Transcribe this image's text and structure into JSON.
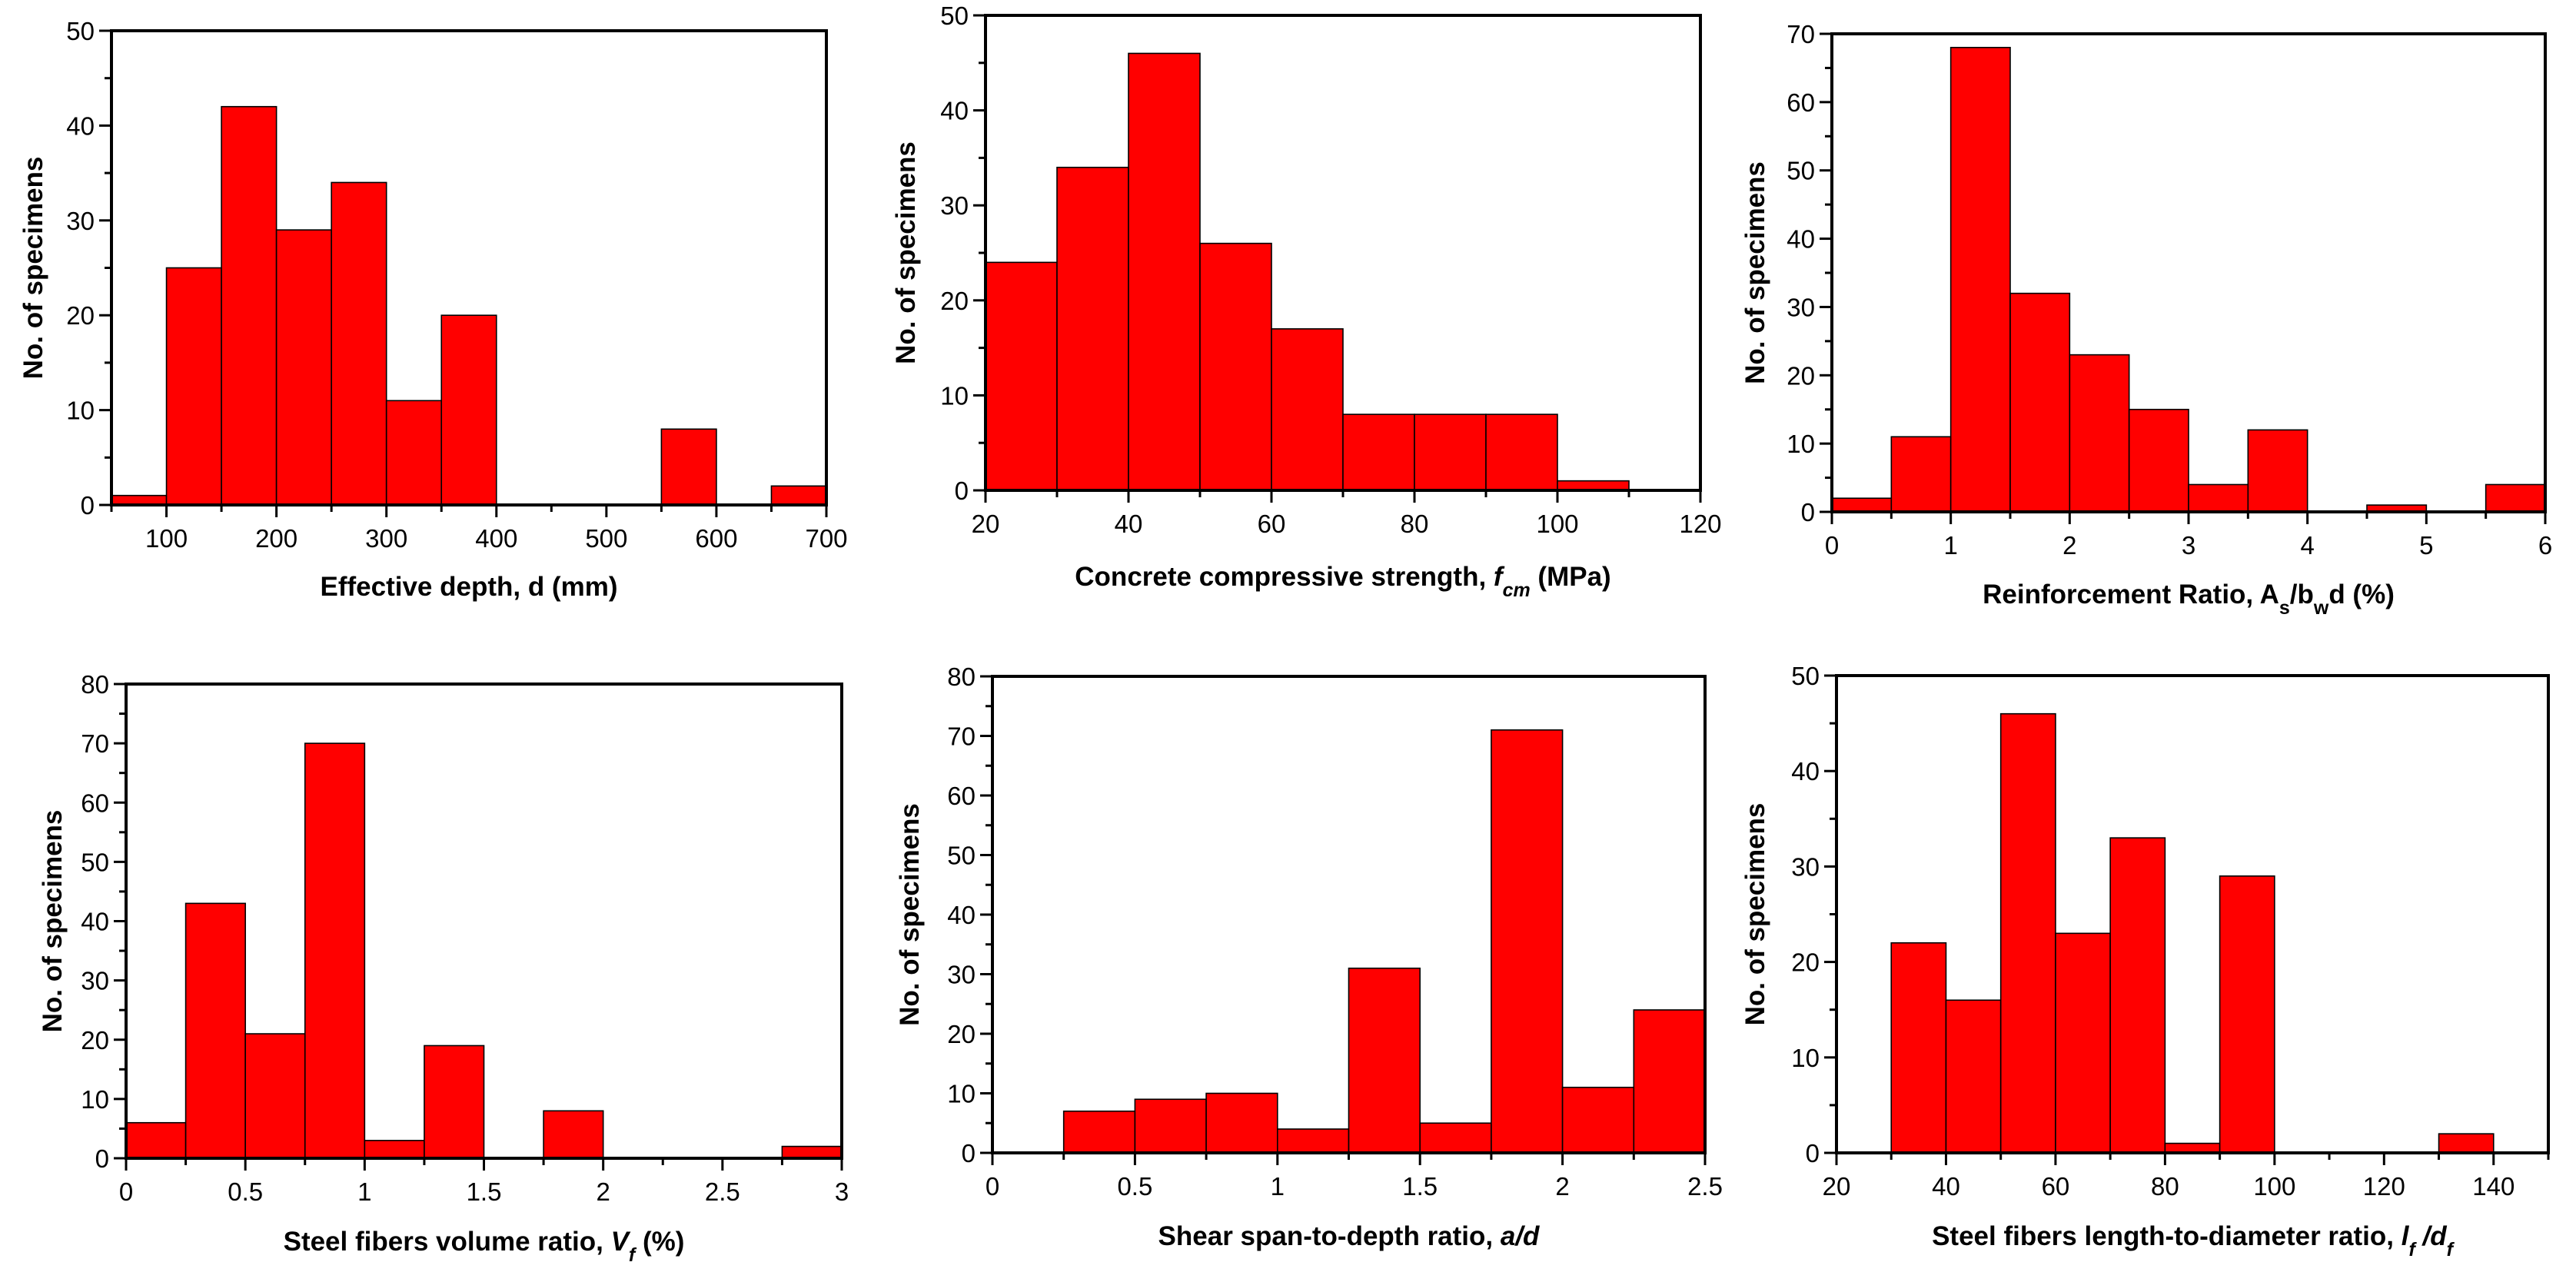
{
  "figure": {
    "bar_color": "#ff0000",
    "edge_color": "#000000"
  },
  "chart_data": [
    {
      "type": "bar",
      "title": "",
      "xlabel": "Effective depth, d (mm)",
      "ylabel": "No. of specimens",
      "xlim": [
        50,
        700
      ],
      "ylim": [
        0,
        50
      ],
      "x_ticks": [
        "100",
        "200",
        "300",
        "400",
        "500",
        "600",
        "700"
      ],
      "y_ticks": [
        "0",
        "10",
        "20",
        "30",
        "40",
        "50"
      ],
      "bins": [
        [
          50,
          100
        ],
        [
          100,
          150
        ],
        [
          150,
          200
        ],
        [
          200,
          250
        ],
        [
          250,
          300
        ],
        [
          300,
          350
        ],
        [
          350,
          400
        ],
        [
          400,
          450
        ],
        [
          450,
          500
        ],
        [
          500,
          550
        ],
        [
          550,
          600
        ],
        [
          600,
          650
        ],
        [
          650,
          700
        ]
      ],
      "values": [
        1,
        25,
        42,
        29,
        34,
        11,
        20,
        0,
        0,
        0,
        8,
        0,
        2
      ]
    },
    {
      "type": "bar",
      "title": "",
      "xlabel_parts": [
        {
          "text": "Concrete compressive strength, ",
          "style": "normal"
        },
        {
          "text": "f",
          "style": "italic"
        },
        {
          "text": "cm",
          "style": "italic-sub"
        },
        {
          "text": " (MPa)",
          "style": "normal"
        }
      ],
      "ylabel": "No. of specimens",
      "xlim": [
        20,
        120
      ],
      "ylim": [
        0,
        50
      ],
      "x_ticks": [
        "20",
        "40",
        "60",
        "80",
        "100",
        "120"
      ],
      "y_ticks": [
        "0",
        "10",
        "20",
        "30",
        "40",
        "50"
      ],
      "bins": [
        [
          20,
          30
        ],
        [
          30,
          40
        ],
        [
          40,
          50
        ],
        [
          50,
          60
        ],
        [
          60,
          70
        ],
        [
          70,
          80
        ],
        [
          80,
          90
        ],
        [
          90,
          100
        ],
        [
          100,
          110
        ]
      ],
      "values": [
        24,
        34,
        46,
        26,
        17,
        8,
        8,
        8,
        1
      ]
    },
    {
      "type": "bar",
      "title": "",
      "xlabel_parts": [
        {
          "text": "Reinforcement Ratio, A",
          "style": "normal"
        },
        {
          "text": "s",
          "style": "sub"
        },
        {
          "text": "/b",
          "style": "normal"
        },
        {
          "text": "w",
          "style": "sub"
        },
        {
          "text": "d (%)",
          "style": "normal"
        }
      ],
      "ylabel": "No. of specimens",
      "xlim": [
        0,
        6
      ],
      "ylim": [
        0,
        70
      ],
      "x_ticks": [
        "0",
        "1",
        "2",
        "3",
        "4",
        "5",
        "6"
      ],
      "y_ticks": [
        "0",
        "10",
        "20",
        "30",
        "40",
        "50",
        "60",
        "70"
      ],
      "bins": [
        [
          0,
          0.5
        ],
        [
          0.5,
          1
        ],
        [
          1,
          1.5
        ],
        [
          1.5,
          2
        ],
        [
          2,
          2.5
        ],
        [
          2.5,
          3
        ],
        [
          3,
          3.5
        ],
        [
          3.5,
          4
        ],
        [
          4,
          4.5
        ],
        [
          4.5,
          5
        ],
        [
          5,
          5.5
        ],
        [
          5.5,
          6
        ]
      ],
      "values": [
        2,
        11,
        68,
        32,
        23,
        15,
        4,
        12,
        0,
        1,
        0,
        4
      ]
    },
    {
      "type": "bar",
      "title": "",
      "xlabel_parts": [
        {
          "text": "Steel fibers volume ratio, ",
          "style": "normal"
        },
        {
          "text": "V",
          "style": "italic"
        },
        {
          "text": "f",
          "style": "italic-sub"
        },
        {
          "text": " (%)",
          "style": "normal"
        }
      ],
      "ylabel": "No. of specimens",
      "xlim": [
        0,
        3
      ],
      "ylim": [
        0,
        80
      ],
      "x_ticks": [
        "0",
        "0.5",
        "1",
        "1.5",
        "2",
        "2.5",
        "3"
      ],
      "y_ticks": [
        "0",
        "10",
        "20",
        "30",
        "40",
        "50",
        "60",
        "70",
        "80"
      ],
      "bins": [
        [
          0,
          0.25
        ],
        [
          0.25,
          0.5
        ],
        [
          0.5,
          0.75
        ],
        [
          0.75,
          1
        ],
        [
          1,
          1.25
        ],
        [
          1.25,
          1.5
        ],
        [
          1.5,
          1.75
        ],
        [
          1.75,
          2
        ],
        [
          2,
          2.25
        ],
        [
          2.25,
          2.5
        ],
        [
          2.5,
          2.75
        ],
        [
          2.75,
          3
        ]
      ],
      "values": [
        6,
        43,
        21,
        70,
        3,
        19,
        0,
        8,
        0,
        0,
        0,
        2
      ]
    },
    {
      "type": "bar",
      "title": "",
      "xlabel_parts": [
        {
          "text": "Shear span-to-depth ratio, ",
          "style": "normal"
        },
        {
          "text": "a/d",
          "style": "italic"
        }
      ],
      "ylabel": "No. of specimens",
      "xlim": [
        0,
        2.5
      ],
      "ylim": [
        0,
        80
      ],
      "x_ticks": [
        "0",
        "0.5",
        "1",
        "1.5",
        "2",
        "2.5"
      ],
      "y_ticks": [
        "0",
        "10",
        "20",
        "30",
        "40",
        "50",
        "60",
        "70",
        "80"
      ],
      "bins": [
        [
          0.25,
          0.5
        ],
        [
          0.5,
          0.75
        ],
        [
          0.75,
          1
        ],
        [
          1,
          1.25
        ],
        [
          1.25,
          1.5
        ],
        [
          1.5,
          1.75
        ],
        [
          1.75,
          2
        ],
        [
          2,
          2.25
        ],
        [
          2.25,
          2.5
        ]
      ],
      "values": [
        7,
        9,
        10,
        4,
        31,
        5,
        71,
        11,
        24
      ]
    },
    {
      "type": "bar",
      "title": "",
      "xlabel_parts": [
        {
          "text": "Steel fibers length-to-diameter ratio, ",
          "style": "normal"
        },
        {
          "text": "l",
          "style": "italic"
        },
        {
          "text": "f",
          "style": "italic-sub"
        },
        {
          "text": " /d",
          "style": "italic"
        },
        {
          "text": "f",
          "style": "italic-sub"
        }
      ],
      "ylabel": "No. of specimens",
      "xlim": [
        20,
        150
      ],
      "ylim": [
        0,
        50
      ],
      "x_ticks": [
        "20",
        "40",
        "60",
        "80",
        "100",
        "120",
        "140"
      ],
      "y_ticks": [
        "0",
        "10",
        "20",
        "30",
        "40",
        "50"
      ],
      "bins": [
        [
          30,
          40
        ],
        [
          40,
          50
        ],
        [
          50,
          60
        ],
        [
          60,
          70
        ],
        [
          70,
          80
        ],
        [
          80,
          90
        ],
        [
          90,
          100
        ],
        [
          100,
          110
        ],
        [
          110,
          120
        ],
        [
          120,
          130
        ],
        [
          130,
          140
        ]
      ],
      "values": [
        22,
        16,
        46,
        23,
        33,
        1,
        29,
        0,
        0,
        0,
        2
      ]
    }
  ]
}
